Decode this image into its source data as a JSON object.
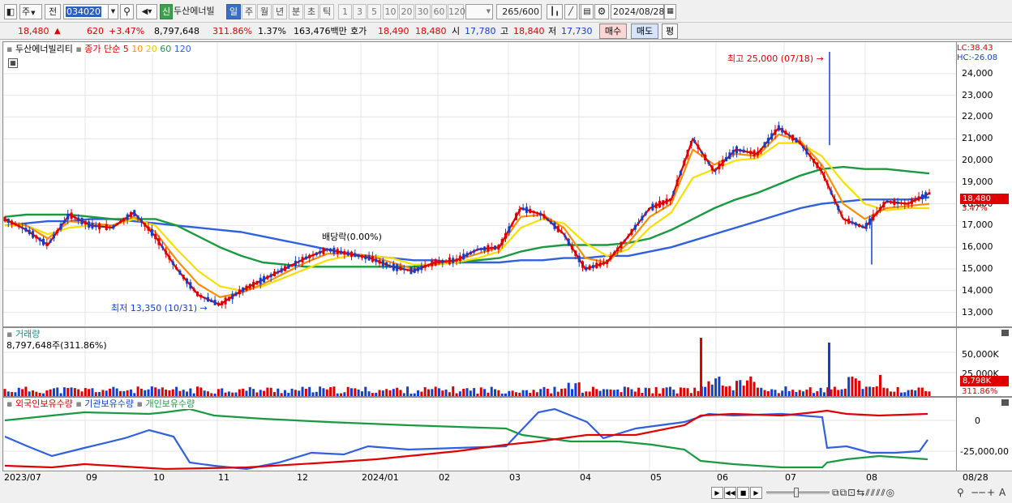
{
  "toolbar": {
    "type_select": "주",
    "prev_btn": "전",
    "code": "034020",
    "name": "두산에너빌",
    "new_badge": "신",
    "periods": [
      "일",
      "주",
      "월",
      "년",
      "분",
      "초",
      "틱"
    ],
    "minutes": [
      "1",
      "3",
      "5",
      "10",
      "20",
      "30",
      "60",
      "120"
    ],
    "count": "265",
    "count_max": "/600",
    "date": "2024/08/28"
  },
  "quote": {
    "price": "18,480",
    "change": "620",
    "change_pct": "+3.47%",
    "volume": "8,797,648",
    "vol_ratio": "311.86%",
    "turnover": "1.37%",
    "amount": "163,476백만",
    "hoga_label": "호가",
    "ask": "18,490",
    "bid": "18,480",
    "open_label": "시",
    "open": "17,780",
    "high_label": "고",
    "high": "18,840",
    "low_label": "저",
    "low": "17,730",
    "buy_btn": "매수",
    "sell_btn": "매도",
    "eval_btn": "평"
  },
  "price_panel": {
    "name": "두산에너빌리티",
    "ma_label": "종가 단순",
    "ma5": "5",
    "ma10": "10",
    "ma20": "20",
    "ma60": "60",
    "ma120": "120",
    "lc": "LC:38.43",
    "hc": "HC:-26.08",
    "last_price": "18,480",
    "last_pct": "3.47%",
    "high_ann": "최고 25,000 (07/18)",
    "low_ann": "최저 13,350 (10/31)",
    "div_ann": "배당락(0.00%)",
    "ticks": [
      "24,000",
      "23,000",
      "22,000",
      "21,000",
      "20,000",
      "19,000",
      "18,000",
      "17,000",
      "16,000",
      "15,000",
      "14,000",
      "13,000"
    ]
  },
  "volume_panel": {
    "title": "거래량",
    "info": "8,797,648주(311.86%)",
    "ticks": [
      "50,000K",
      "25,000K"
    ],
    "last": "8,798K",
    "last_pct": "311.86%"
  },
  "holding_panel": {
    "foreign": "외국인보유수량",
    "inst": "기관보유수량",
    "indiv": "개인보유수량",
    "ticks": [
      "0",
      "-25,000,00"
    ]
  },
  "xaxis": {
    "labels": [
      "2023/07",
      "09",
      "10",
      "11",
      "12",
      "2024/01",
      "02",
      "03",
      "04",
      "05",
      "06",
      "07",
      "08"
    ],
    "end": "08/28"
  },
  "colors": {
    "up": "#e00000",
    "down": "#1040d0",
    "ma5": "#e00000",
    "ma10": "#ff8c00",
    "ma20": "#f5e000",
    "ma60": "#1a9a40",
    "ma120": "#3060e0"
  },
  "chart_data": [
    {
      "type": "line",
      "title": "",
      "series_note": "daily close with moving averages",
      "series": [
        {
          "name": "5",
          "values": [
            17.3,
            16.8,
            16.1,
            17.5,
            17.0,
            16.9,
            17.6,
            16.5,
            15.0,
            13.8,
            13.35,
            14.0,
            14.5,
            15.0,
            15.5,
            15.9,
            15.7,
            15.5,
            15.1,
            14.9,
            15.3,
            15.4,
            15.9,
            16.0,
            17.8,
            17.5,
            16.6,
            15.0,
            15.3,
            16.5,
            17.8,
            18.2,
            21.0,
            19.5,
            20.5,
            20.3,
            21.5,
            20.8,
            19.5,
            17.3,
            16.9,
            18.1,
            18.0,
            18.48
          ]
        },
        {
          "name": "10",
          "values": [
            17.2,
            17.0,
            16.4,
            17.2,
            17.1,
            17.0,
            17.4,
            16.7,
            15.4,
            14.3,
            13.7,
            13.9,
            14.3,
            14.8,
            15.3,
            15.7,
            15.7,
            15.6,
            15.3,
            15.0,
            15.2,
            15.4,
            15.7,
            16.0,
            17.4,
            17.5,
            16.9,
            15.5,
            15.3,
            16.2,
            17.4,
            18.0,
            20.5,
            19.8,
            20.3,
            20.2,
            21.2,
            20.9,
            19.8,
            18.0,
            17.3,
            17.8,
            17.9,
            18.0
          ]
        },
        {
          "name": "20",
          "values": [
            17.0,
            17.0,
            16.6,
            16.9,
            17.0,
            17.0,
            17.3,
            17.0,
            15.9,
            14.9,
            14.2,
            14.0,
            14.2,
            14.6,
            15.0,
            15.4,
            15.6,
            15.6,
            15.5,
            15.2,
            15.2,
            15.3,
            15.5,
            15.8,
            16.9,
            17.3,
            17.1,
            16.2,
            15.6,
            15.9,
            16.9,
            17.6,
            19.2,
            19.6,
            20.0,
            20.1,
            20.8,
            20.8,
            20.2,
            19.0,
            18.0,
            17.7,
            17.8,
            17.8
          ]
        },
        {
          "name": "60",
          "values": [
            17.4,
            17.5,
            17.5,
            17.5,
            17.4,
            17.3,
            17.3,
            17.3,
            17.0,
            16.5,
            16.0,
            15.6,
            15.3,
            15.2,
            15.1,
            15.1,
            15.1,
            15.1,
            15.1,
            15.1,
            15.2,
            15.3,
            15.4,
            15.5,
            15.8,
            16.0,
            16.1,
            16.1,
            16.1,
            16.2,
            16.4,
            16.8,
            17.3,
            17.8,
            18.2,
            18.5,
            18.9,
            19.3,
            19.6,
            19.7,
            19.6,
            19.6,
            19.5,
            19.4
          ]
        },
        {
          "name": "120",
          "values": [
            17.0,
            17.1,
            17.2,
            17.2,
            17.3,
            17.3,
            17.2,
            17.1,
            17.0,
            16.9,
            16.8,
            16.7,
            16.5,
            16.3,
            16.1,
            15.9,
            15.7,
            15.6,
            15.5,
            15.4,
            15.4,
            15.3,
            15.3,
            15.3,
            15.4,
            15.4,
            15.5,
            15.5,
            15.6,
            15.6,
            15.8,
            16.0,
            16.3,
            16.6,
            16.9,
            17.2,
            17.5,
            17.8,
            18.0,
            18.1,
            18.2,
            18.2,
            18.2,
            18.3
          ]
        }
      ],
      "ylim": [
        12500,
        25300
      ]
    }
  ]
}
